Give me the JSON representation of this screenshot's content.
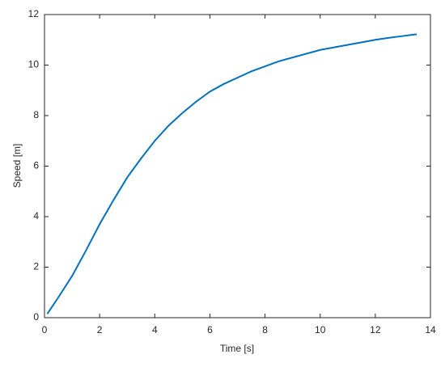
{
  "chart_data": {
    "type": "line",
    "x_label": "Time [s]",
    "y_label": "Speed [m]",
    "x": [
      0.1,
      0.5,
      1,
      1.5,
      2,
      2.5,
      3,
      3.5,
      4,
      4.5,
      5,
      5.5,
      6,
      6.5,
      7,
      7.5,
      8,
      8.5,
      9,
      9.5,
      10,
      10.5,
      11,
      11.5,
      12,
      12.5,
      13,
      13.5
    ],
    "series": [
      {
        "name": "Speed",
        "color": "#0072bd",
        "values": [
          0.15,
          0.8,
          1.65,
          2.65,
          3.7,
          4.65,
          5.55,
          6.3,
          7.0,
          7.6,
          8.1,
          8.55,
          8.95,
          9.25,
          9.5,
          9.75,
          9.95,
          10.15,
          10.3,
          10.45,
          10.6,
          10.7,
          10.8,
          10.9,
          11.0,
          11.08,
          11.15,
          11.22
        ]
      }
    ],
    "xlim": [
      0,
      14
    ],
    "xticks": [
      0,
      2,
      4,
      6,
      8,
      10,
      12,
      14
    ],
    "ylim": [
      0,
      12
    ],
    "yticks": [
      0,
      2,
      4,
      6,
      8,
      10,
      12
    ],
    "grid": false
  }
}
